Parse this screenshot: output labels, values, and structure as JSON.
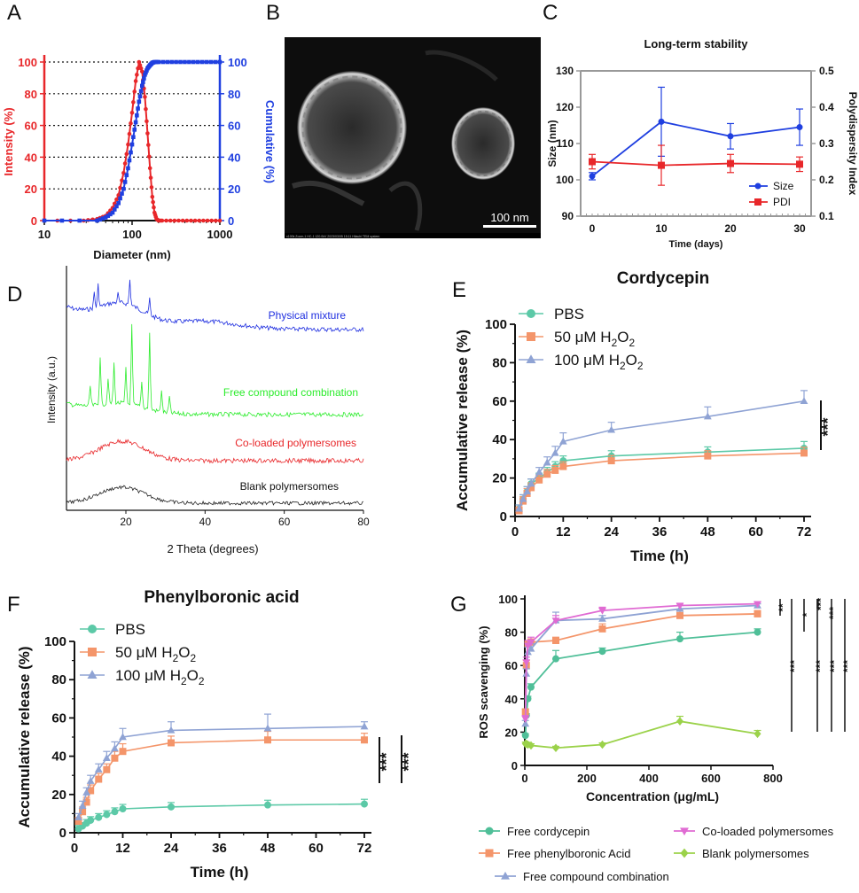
{
  "figure": {
    "panel_labels": [
      "A",
      "B",
      "C",
      "D",
      "E",
      "F",
      "G"
    ]
  },
  "chart_data": [
    {
      "id": "A",
      "type": "line",
      "title": "",
      "xlabel": "Diameter (nm)",
      "ylabel_left": "Intensity (%)",
      "ylabel_right": "Cumulative (%)",
      "xscale": "log",
      "xlim": [
        10,
        1000
      ],
      "ylim": [
        0,
        100
      ],
      "xticks": [
        "10",
        "100",
        "1000"
      ],
      "yticks": [
        "0",
        "20",
        "40",
        "60",
        "80",
        "100"
      ],
      "colors": {
        "intensity": "#e8272a",
        "cumulative": "#1f3fe0"
      },
      "series": [
        {
          "name": "Intensity",
          "axis": "left",
          "x": [
            10,
            28,
            40,
            50,
            60,
            70,
            80,
            90,
            100,
            110,
            120,
            130,
            140,
            150,
            160,
            170,
            180,
            190,
            200,
            220,
            1000
          ],
          "y": [
            0,
            0,
            1,
            3,
            8,
            16,
            30,
            48,
            68,
            88,
            100,
            94,
            78,
            55,
            33,
            15,
            5,
            1,
            0,
            0,
            0
          ]
        },
        {
          "name": "Cumulative",
          "axis": "right",
          "x": [
            10,
            40,
            50,
            60,
            70,
            80,
            90,
            100,
            110,
            120,
            130,
            140,
            150,
            160,
            170,
            180,
            200,
            1000
          ],
          "y": [
            0,
            0,
            2,
            5,
            11,
            20,
            33,
            48,
            62,
            75,
            85,
            92,
            96,
            98,
            99.5,
            100,
            100,
            100
          ]
        }
      ]
    },
    {
      "id": "B",
      "type": "image",
      "scalebar_label": "100 nm",
      "footer": "x100k Zoom-1 HC-1 120.0kV 2023/03/05 15:11   Hitachi TEM system"
    },
    {
      "id": "C",
      "type": "line",
      "title": "Long-term stability",
      "xlabel": "Time (days)",
      "ylabel_left": "Size (nm)",
      "ylabel_right": "Polydispersity Index",
      "xlim": [
        0,
        30
      ],
      "ylim_left": [
        90,
        130
      ],
      "ylim_right": [
        0.1,
        0.5
      ],
      "xticks": [
        "0",
        "10",
        "20",
        "30"
      ],
      "yticks_left": [
        "90",
        "100",
        "110",
        "120",
        "130"
      ],
      "yticks_right": [
        "0.1",
        "0.2",
        "0.3",
        "0.4",
        "0.5"
      ],
      "legend": [
        "Size",
        "PDI"
      ],
      "series": [
        {
          "name": "Size",
          "axis": "left",
          "color": "#1f3fe0",
          "x": [
            0,
            10,
            20,
            30
          ],
          "y": [
            101,
            116,
            112,
            114.5
          ],
          "err": [
            1,
            9.5,
            3.5,
            5
          ]
        },
        {
          "name": "PDI",
          "axis": "right",
          "color": "#e8272a",
          "x": [
            0,
            10,
            20,
            30
          ],
          "y": [
            0.25,
            0.24,
            0.245,
            0.243
          ],
          "err": [
            0.02,
            0.055,
            0.025,
            0.02
          ]
        }
      ]
    },
    {
      "id": "D",
      "type": "line",
      "xlabel": "2 Theta (degrees)",
      "ylabel": "Intensity (a.u.)",
      "xlim": [
        5,
        80
      ],
      "xticks": [
        "20",
        "40",
        "60",
        "80"
      ],
      "series": [
        {
          "name": "Physical mixture",
          "color": "#1f2fe0"
        },
        {
          "name": "Free compound combination",
          "color": "#2cec2c"
        },
        {
          "name": "Co-loaded polymersomes",
          "color": "#e8272a"
        },
        {
          "name": "Blank polymersomes",
          "color": "#222222"
        }
      ]
    },
    {
      "id": "E",
      "type": "line",
      "title": "Cordycepin",
      "xlabel": "Time (h)",
      "ylabel": "Accumulative release (%)",
      "xlim": [
        0,
        72
      ],
      "ylim": [
        0,
        100
      ],
      "xticks": [
        "0",
        "12",
        "24",
        "36",
        "48",
        "60",
        "72"
      ],
      "yticks": [
        "0",
        "20",
        "40",
        "60",
        "80",
        "100"
      ],
      "significance": "***",
      "legend": [
        {
          "name": "PBS",
          "marker": "circle",
          "color": "#5cc9a7"
        },
        {
          "name": "50 μM H₂O₂",
          "marker": "square",
          "color": "#f4956a"
        },
        {
          "name": "100 μM H₂O₂",
          "marker": "triangle",
          "color": "#8fa3d4"
        }
      ],
      "x": [
        1,
        2,
        3,
        4,
        6,
        8,
        10,
        12,
        24,
        48,
        72
      ],
      "series": [
        {
          "name": "PBS",
          "values": [
            4,
            9,
            13,
            17,
            20,
            23,
            26,
            29,
            31.5,
            33.5,
            35.5
          ],
          "err": [
            0.5,
            0.8,
            1,
            1,
            1,
            1,
            1,
            1,
            1.2,
            1.2,
            2
          ]
        },
        {
          "name": "50 μM H₂O₂",
          "values": [
            3,
            8,
            12,
            15,
            19,
            22,
            24,
            26,
            29,
            31.5,
            33
          ],
          "err": [
            0.5,
            0.8,
            1,
            1,
            1,
            1,
            1,
            1,
            1.2,
            1.2,
            1.5
          ]
        },
        {
          "name": "100 μM H₂O₂",
          "values": [
            4,
            9,
            13,
            17,
            23,
            28,
            33,
            39,
            45,
            52,
            60
          ],
          "err": [
            0.5,
            0.8,
            1,
            1,
            1,
            1.5,
            2,
            3,
            2.5,
            3.5,
            4
          ]
        }
      ]
    },
    {
      "id": "F",
      "type": "line",
      "title": "Phenylboronic acid",
      "xlabel": "Time (h)",
      "ylabel": "Accumulative release (%)",
      "xlim": [
        0,
        72
      ],
      "ylim": [
        0,
        100
      ],
      "xticks": [
        "0",
        "12",
        "24",
        "36",
        "48",
        "60",
        "72"
      ],
      "yticks": [
        "0",
        "20",
        "40",
        "60",
        "80",
        "100"
      ],
      "significance": [
        "***",
        "***"
      ],
      "legend": [
        {
          "name": "PBS",
          "marker": "circle",
          "color": "#5cc9a7"
        },
        {
          "name": "50 μM H₂O₂",
          "marker": "square",
          "color": "#f4956a"
        },
        {
          "name": "100 μM H₂O₂",
          "marker": "triangle",
          "color": "#8fa3d4"
        }
      ],
      "x": [
        1,
        2,
        3,
        4,
        6,
        8,
        10,
        12,
        24,
        48,
        72
      ],
      "series": [
        {
          "name": "PBS",
          "values": [
            2,
            3.5,
            5,
            6.5,
            8,
            9.5,
            11,
            12.5,
            13.5,
            14.5,
            15
          ],
          "err": [
            0.3,
            0.3,
            0.4,
            0.4,
            0.5,
            0.5,
            0.5,
            0.8,
            0.8,
            1,
            1
          ]
        },
        {
          "name": "50 μM H₂O₂",
          "values": [
            6,
            11,
            16,
            22,
            28,
            33,
            39,
            42.5,
            47,
            48.5,
            48.5
          ],
          "err": [
            0.5,
            1,
            1,
            1.5,
            1.5,
            1.5,
            2,
            2.5,
            2,
            3,
            2
          ]
        },
        {
          "name": "100 μM H₂O₂",
          "values": [
            8,
            14,
            21,
            27,
            33,
            39,
            44,
            50,
            53.5,
            54.5,
            55.5
          ],
          "err": [
            0.5,
            1,
            1,
            1.5,
            1.5,
            2,
            2,
            3,
            3,
            6,
            1
          ]
        }
      ]
    },
    {
      "id": "G",
      "type": "line",
      "title": "",
      "xlabel": "Concentration (μg/mL)",
      "ylabel": "ROS scavenging (%)",
      "xlim": [
        0,
        800
      ],
      "ylim": [
        0,
        100
      ],
      "xticks": [
        "0",
        "200",
        "400",
        "600",
        "800"
      ],
      "yticks": [
        "0",
        "20",
        "40",
        "60",
        "80",
        "100"
      ],
      "significance": [
        "**",
        "*",
        "***",
        "***",
        "***",
        "***",
        "***",
        "***"
      ],
      "x": [
        2,
        5,
        10,
        20,
        100,
        250,
        500,
        750
      ],
      "series": [
        {
          "name": "Free cordycepin",
          "color": "#4fbf98",
          "marker": "circle",
          "values": [
            18,
            30,
            40,
            47,
            64,
            68.5,
            76,
            80
          ],
          "err": [
            1,
            1,
            1.5,
            2,
            5,
            2,
            4,
            2
          ]
        },
        {
          "name": "Free phenylboronic Acid",
          "color": "#f4956a",
          "marker": "square",
          "values": [
            32,
            60,
            73,
            74,
            75,
            82,
            90,
            91
          ],
          "err": [
            2,
            3,
            2,
            2,
            2,
            3,
            3,
            2
          ]
        },
        {
          "name": "Free compound combination",
          "color": "#8fa3d4",
          "marker": "triangle",
          "values": [
            25,
            55,
            68,
            70,
            87,
            88,
            94,
            96
          ],
          "err": [
            2,
            3,
            3,
            3,
            5,
            2,
            2,
            1
          ]
        },
        {
          "name": "Co-loaded polymersomes",
          "color": "#e06bd3",
          "marker": "triangle-down",
          "values": [
            28,
            62,
            72,
            74,
            87,
            93,
            96,
            97
          ],
          "err": [
            2,
            3,
            3,
            3,
            3,
            2,
            1,
            1
          ]
        },
        {
          "name": "Blank polymersomes",
          "color": "#9bd24a",
          "marker": "diamond",
          "values": [
            13,
            13,
            12.5,
            12,
            10.5,
            12.5,
            26.5,
            19
          ],
          "err": [
            1,
            1,
            1,
            1,
            1,
            1,
            3,
            2
          ]
        }
      ]
    }
  ]
}
